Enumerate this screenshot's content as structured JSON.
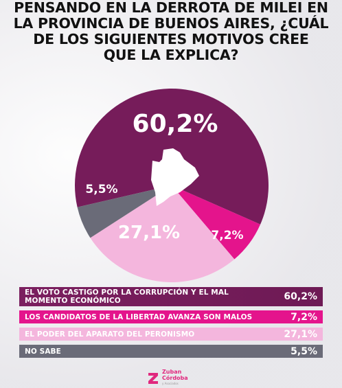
{
  "title_lines": [
    "PENSANDO EN LA DERROTA DE MILEI EN",
    "LA PROVINCIA DE BUENOS AIRES, ¿CUÁL",
    "DE LOS SIGUIENTES MOTIVOS CREE",
    "QUE LA EXPLICA?"
  ],
  "chart_data": {
    "type": "pie",
    "title": "PENSANDO EN LA DERROTA DE MILEI EN LA PROVINCIA DE BUENOS AIRES, ¿CUÁL DE LOS SIGUIENTES MOTIVOS CREE QUE LA EXPLICA?",
    "categories": [
      "EL VOTO CASTIGO POR LA CORRUPCIÓN Y EL MAL MOMENTO ECONÓMICO",
      "LOS CANDIDATOS DE LA LIBERTAD AVANZA SON MALOS",
      "EL PODER DEL APARATO DEL PERONISMO",
      "NO SABE"
    ],
    "values": [
      60.2,
      7.2,
      27.1,
      5.5
    ],
    "value_labels": [
      "60,2%",
      "7,2%",
      "27,1%",
      "5,5%"
    ],
    "colors": [
      "#761c5a",
      "#e4148c",
      "#f4b6dd",
      "#6a6b78"
    ],
    "legend_placement": "bottom"
  },
  "legend": [
    {
      "label_lines": [
        "EL VOTO CASTIGO POR LA CORRUPCIÓN Y EL MAL",
        "MOMENTO ECONÓMICO"
      ],
      "value": "60,2%"
    },
    {
      "label_lines": [
        "LOS CANDIDATOS DE LA LIBERTAD AVANZA SON MALOS"
      ],
      "value": "7,2%"
    },
    {
      "label_lines": [
        "EL PODER DEL APARATO DEL PERONISMO"
      ],
      "value": "27,1%"
    },
    {
      "label_lines": [
        "NO SABE"
      ],
      "value": "5,5%"
    }
  ],
  "center_icon": "buenos-aires-province-map-icon",
  "logo": {
    "icon": "zuban-cordoba-logo-icon",
    "line1": "Zuban",
    "line2": "Córdoba",
    "line3": "y Asociados"
  }
}
